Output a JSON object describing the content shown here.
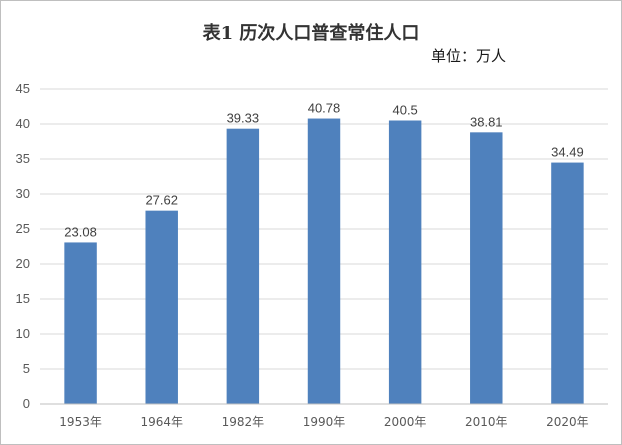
{
  "chart_data": {
    "type": "bar",
    "title": "表1 历次人口普查常住人口",
    "unit_label": "单位：万人",
    "categories": [
      "1953年",
      "1964年",
      "1982年",
      "1990年",
      "2000年",
      "2010年",
      "2020年"
    ],
    "values": [
      23.08,
      27.62,
      39.33,
      40.78,
      40.5,
      38.81,
      34.49
    ],
    "value_labels": [
      "23.08",
      "27.62",
      "39.33",
      "40.78",
      "40.5",
      "38.81",
      "34.49"
    ],
    "ylim": [
      0,
      45
    ],
    "yticks": [
      0,
      5,
      10,
      15,
      20,
      25,
      30,
      35,
      40,
      45
    ],
    "grid": true,
    "legend": "none",
    "bar_color": "#4f81bd"
  }
}
